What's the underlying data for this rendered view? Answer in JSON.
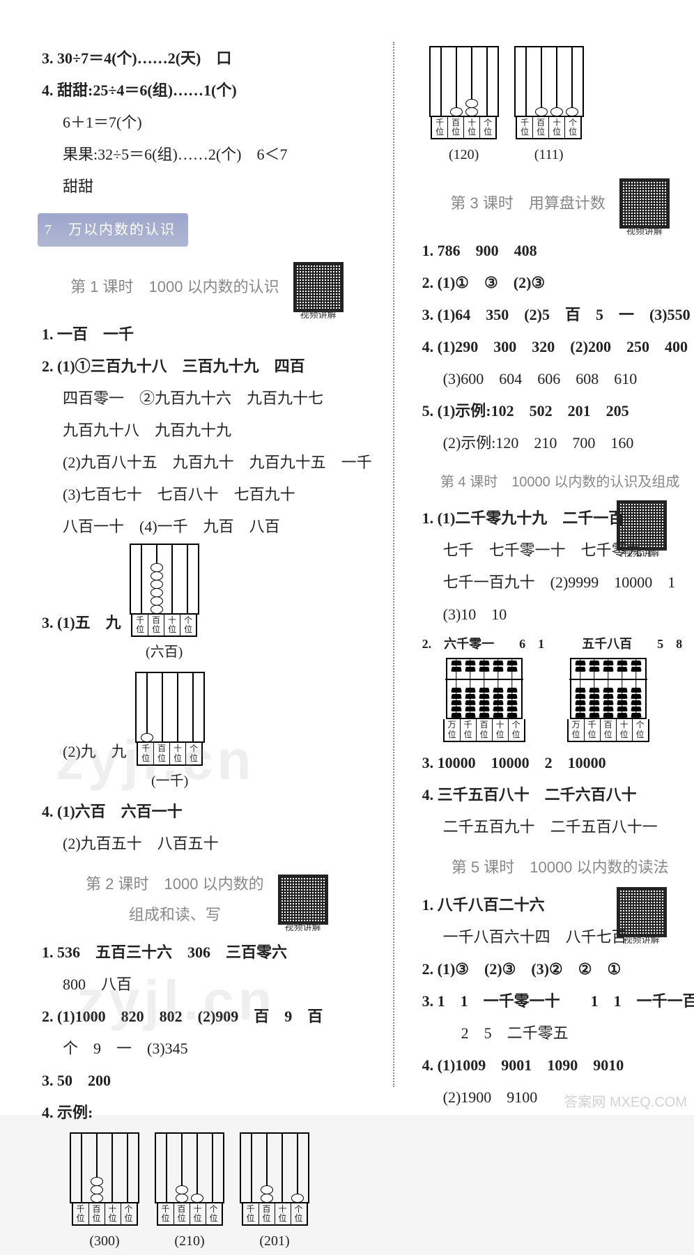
{
  "left": {
    "p3": "3. 30÷7＝4(个)……2(天)　口",
    "p4a": "4. 甜甜:25÷4＝6(组)……1(个)",
    "p4b": "6＋1＝7(个)",
    "p4c": "果果:32÷5＝6(组)……2(个)　6＜7",
    "p4d": "甜甜",
    "unit_header": "7　万以内数的认识",
    "lesson1_title": "第 1 课时　1000 以内数的认识",
    "l1_1": "1. 一百　一千",
    "l1_2a": "2. (1)①三百九十八　三百九十九　四百",
    "l1_2b": "四百零一　②九百九十六　九百九十七",
    "l1_2c": "九百九十八　九百九十九",
    "l1_2d": "(2)九百八十五　九百九十　九百九十五　一千",
    "l1_2e": "(3)七百七十　七百八十　七百九十",
    "l1_2f": "八百一十　(4)一千　九百　八百",
    "l1_3a_pre": "3. (1)五　九",
    "l1_3a_cap": "(六百)",
    "l1_3b_pre": "(2)九　九",
    "l1_3b_cap": "(一千)",
    "l1_4a": "4. (1)六百　六百一十",
    "l1_4b": "(2)九百五十　八百五十",
    "lesson2_title_a": "第 2 课时　1000 以内数的",
    "lesson2_title_b": "组成和读、写",
    "l2_1a": "1. 536　五百三十六　306　三百零六",
    "l2_1b": "800　八百",
    "l2_2a": "2. (1)1000　820　802　(2)909　百　9　百",
    "l2_2b": "个　9　一　(3)345",
    "l2_3": "3. 50　200",
    "l2_4": "4. 示例:",
    "l2_cap1": "(300)",
    "l2_cap2": "(210)",
    "l2_cap3": "(201)",
    "places4": [
      "千位",
      "百位",
      "十位",
      "个位"
    ]
  },
  "right": {
    "top_cap1": "(120)",
    "top_cap2": "(111)",
    "lesson3_title": "第 3 课时　用算盘计数",
    "l3_1": "1. 786　900　408",
    "l3_2": "2. (1)①　③　(2)③",
    "l3_3": "3. (1)64　350　(2)5　百　5　一　(3)550",
    "l3_4a": "4. (1)290　300　320　(2)200　250　400",
    "l3_4b": "(3)600　604　606　608　610",
    "l3_5a": "5. (1)示例:102　502　201　205",
    "l3_5b": "(2)示例:120　210　700　160",
    "lesson4_title": "第 4 课时　10000 以内数的认识及组成",
    "l4_1a": "1. (1)二千零九十九　二千一百",
    "l4_1b": "七千　七千零一十　七千零九十",
    "l4_1c": "七千一百九十　(2)9999　10000　1",
    "l4_1d": "(3)10　10",
    "l4_2_a": "2.　六千零一　　6　1　　　五千八百　　5　8",
    "l4_3": "3. 10000　10000　2　10000",
    "l4_4a": "4. 三千五百八十　二千六百八十",
    "l4_4b": "二千五百九十　二千五百八十一",
    "lesson5_title": "第 5 课时　10000 以内数的读法",
    "l5_1a": "1. 八千八百二十六",
    "l5_1b": "一千八百六十四　八千七百",
    "l5_2": "2. (1)③　(2)③　(3)②　②　①",
    "l5_3a": "3. 1　1　一千零一十　　1　1　一千一百",
    "l5_3b": "2　5　二千零五",
    "l5_4a": "4. (1)1009　9001　1090　9010",
    "l5_4b": "(2)1900　9100",
    "places4": [
      "千位",
      "百位",
      "十位",
      "个位"
    ],
    "places5": [
      "万位",
      "千位",
      "百位",
      "十位",
      "个位"
    ]
  },
  "abaci": {
    "L3_1": {
      "beads": [
        0,
        6,
        0,
        0
      ],
      "places": "places4"
    },
    "L3_2": {
      "beads": [
        1,
        0,
        0,
        0
      ],
      "places": "places4"
    },
    "L2_300": {
      "beads": [
        0,
        3,
        0,
        0
      ],
      "places": "places4"
    },
    "L2_210": {
      "beads": [
        0,
        2,
        1,
        0
      ],
      "places": "places4"
    },
    "L2_201": {
      "beads": [
        0,
        2,
        0,
        1
      ],
      "places": "places4"
    },
    "R_120": {
      "beads": [
        0,
        1,
        2,
        0
      ],
      "places": "places4"
    },
    "R_111": {
      "beads": [
        0,
        1,
        1,
        1
      ],
      "places": "places4"
    }
  },
  "watermarks": {
    "w1": "zyjl.cn",
    "w2": "zyjl.cn",
    "corner": "答案网  MXEQ.COM"
  }
}
